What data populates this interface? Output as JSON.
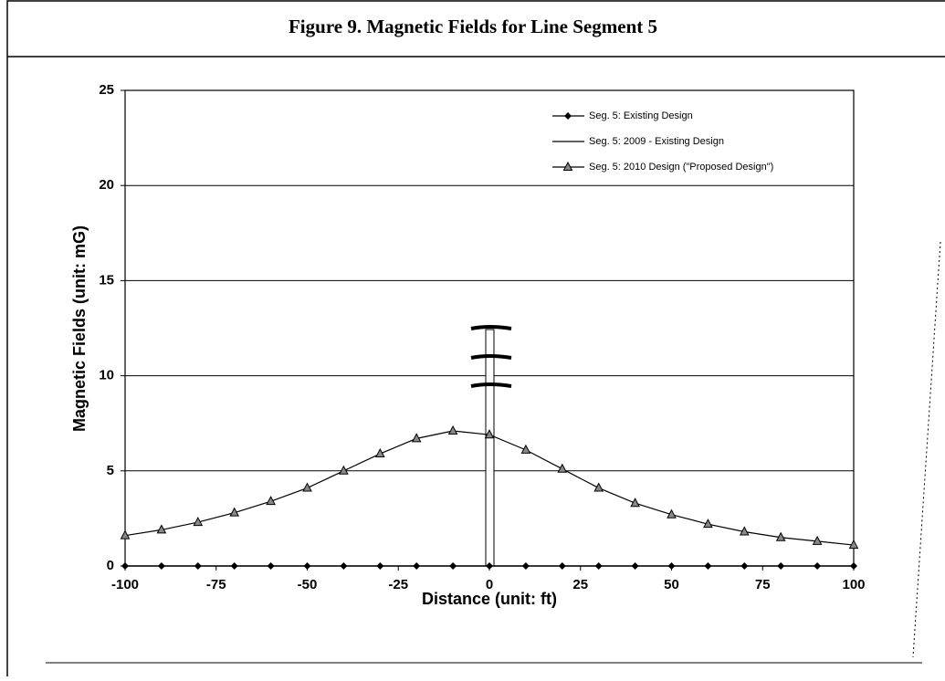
{
  "chart_data": {
    "type": "line",
    "title": "Figure 9.  Magnetic Fields for Line Segment 5",
    "x_label": "Distance (unit: ft)",
    "y_label": "Magnetic Fields (unit: mG)",
    "x": [
      -100,
      -90,
      -80,
      -70,
      -60,
      -50,
      -40,
      -30,
      -20,
      -10,
      0,
      10,
      20,
      30,
      40,
      50,
      60,
      70,
      80,
      90,
      100
    ],
    "series": [
      {
        "name": "Seg. 5: Existing Design",
        "color": "#000000",
        "marker": "diamond",
        "values": [
          0,
          0,
          0,
          0,
          0,
          0,
          0,
          0,
          0,
          0,
          0,
          0,
          0,
          0,
          0,
          0,
          0,
          0,
          0,
          0,
          0
        ]
      },
      {
        "name": "Seg. 5: 2009 - Existing Design",
        "color": "#000000",
        "marker": "none",
        "values": [
          0,
          0,
          0,
          0,
          0,
          0,
          0,
          0,
          0,
          0,
          0,
          0,
          0,
          0,
          0,
          0,
          0,
          0,
          0,
          0,
          0
        ]
      },
      {
        "name": "Seg. 5: 2010 Design (\"Proposed Design\")",
        "color": "#000000",
        "marker": "triangle",
        "values": [
          1.6,
          1.9,
          2.3,
          2.8,
          3.4,
          4.1,
          5.0,
          5.9,
          6.7,
          7.1,
          6.9,
          6.1,
          5.1,
          4.1,
          3.3,
          2.7,
          2.2,
          1.8,
          1.5,
          1.3,
          1.1
        ]
      }
    ],
    "xlim": [
      -100,
      100
    ],
    "xticks": [
      -100,
      -75,
      -50,
      -25,
      0,
      25,
      50,
      75,
      100
    ],
    "ylim": [
      0,
      25
    ],
    "yticks": [
      0,
      5,
      10,
      15,
      20,
      25
    ],
    "grid": true,
    "legend": "top-right"
  }
}
